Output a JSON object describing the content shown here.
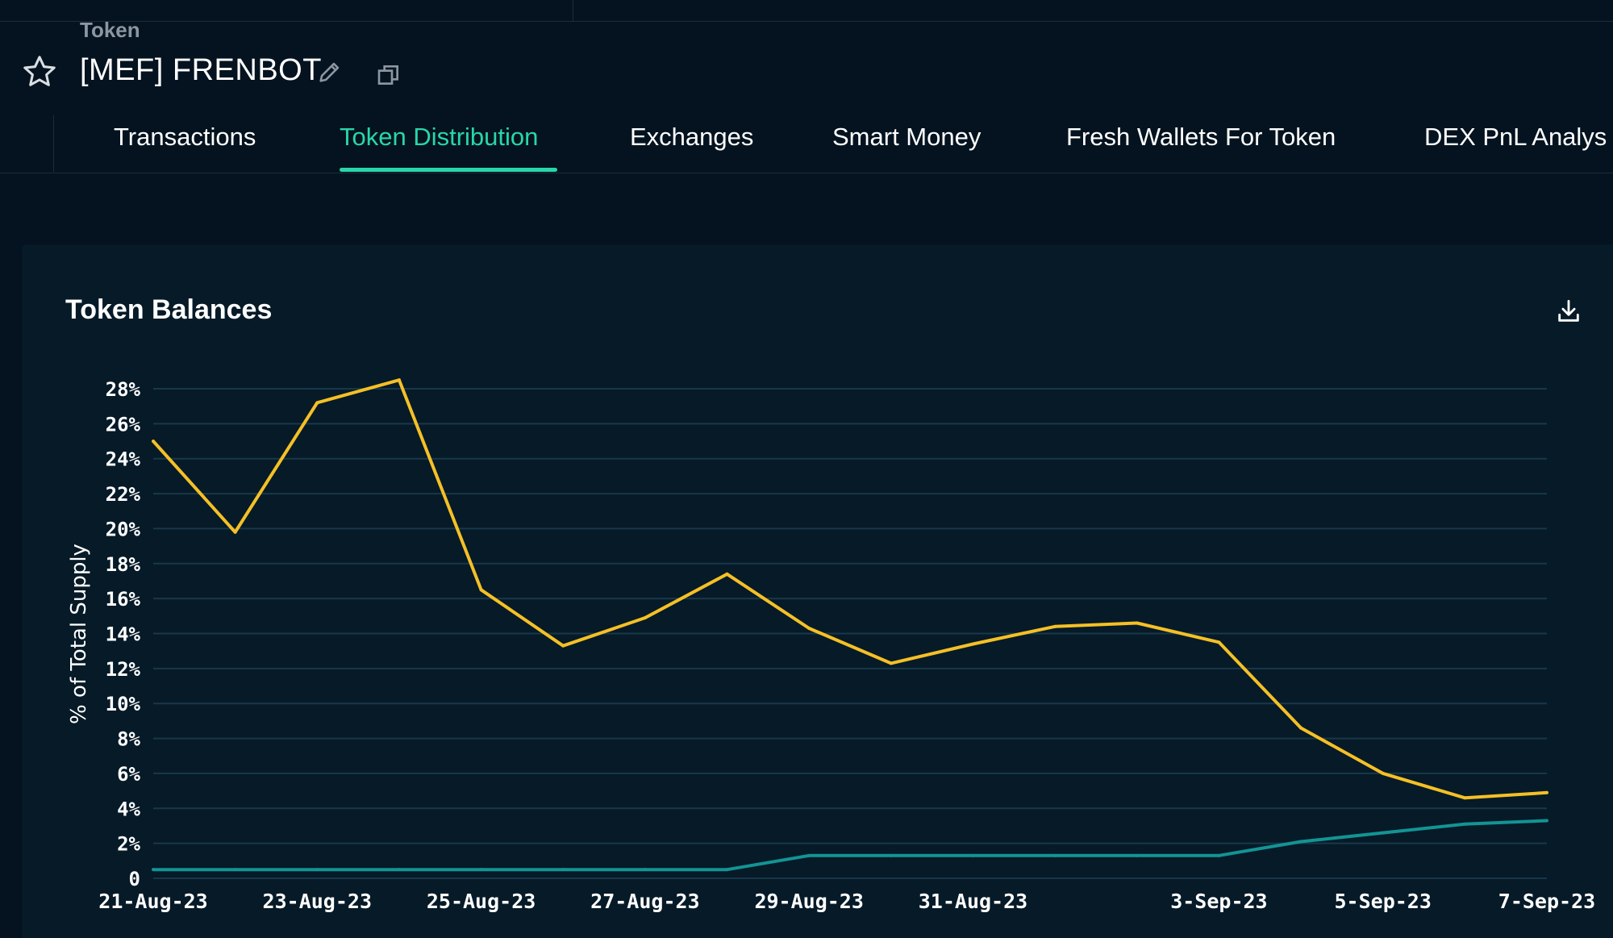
{
  "header": {
    "breadcrumb": "Token",
    "token_name": "[MEF] FRENBOT"
  },
  "tabs": [
    {
      "label": "Transactions",
      "active": false
    },
    {
      "label": "Token Distribution",
      "active": true
    },
    {
      "label": "Exchanges",
      "active": false
    },
    {
      "label": "Smart Money",
      "active": false
    },
    {
      "label": "Fresh Wallets For Token",
      "active": false
    },
    {
      "label": "DEX PnL Analys",
      "active": false
    }
  ],
  "colors": {
    "accent": "#29d6a9",
    "background": "#04131f",
    "card": "#061a28",
    "series_yellow": "#f5c026",
    "series_teal": "#139494",
    "grid": "#18384a"
  },
  "icons": [
    "star-icon",
    "edit-icon",
    "copy-icon",
    "download-icon"
  ],
  "chart_data": {
    "type": "line",
    "title": "Token Balances",
    "ylabel": "% of Total Supply",
    "xlabel": "",
    "ylim": [
      0,
      28
    ],
    "yticks": [
      0,
      2,
      4,
      6,
      8,
      10,
      12,
      14,
      16,
      18,
      20,
      22,
      24,
      26,
      28
    ],
    "ytick_labels": [
      "0",
      "2%",
      "4%",
      "6%",
      "8%",
      "10%",
      "12%",
      "14%",
      "16%",
      "18%",
      "20%",
      "22%",
      "24%",
      "26%",
      "28%"
    ],
    "x": [
      "21-Aug-23",
      "22-Aug-23",
      "23-Aug-23",
      "24-Aug-23",
      "25-Aug-23",
      "26-Aug-23",
      "27-Aug-23",
      "28-Aug-23",
      "29-Aug-23",
      "30-Aug-23",
      "31-Aug-23",
      "1-Sep-23",
      "2-Sep-23",
      "3-Sep-23",
      "4-Sep-23",
      "5-Sep-23",
      "6-Sep-23",
      "7-Sep-23"
    ],
    "xtick_labels": [
      "21-Aug-23",
      "23-Aug-23",
      "25-Aug-23",
      "27-Aug-23",
      "29-Aug-23",
      "31-Aug-23",
      "3-Sep-23",
      "5-Sep-23",
      "7-Sep-23"
    ],
    "grid": true,
    "legend": "none",
    "series": [
      {
        "color": "#f5c026",
        "values": [
          25.0,
          19.8,
          27.2,
          28.5,
          16.5,
          13.3,
          14.9,
          17.4,
          14.3,
          12.3,
          13.4,
          14.4,
          14.6,
          13.5,
          8.6,
          6.0,
          4.6,
          4.9
        ]
      },
      {
        "color": "#139494",
        "values": [
          0.5,
          0.5,
          0.5,
          0.5,
          0.5,
          0.5,
          0.5,
          0.5,
          1.3,
          1.3,
          1.3,
          1.3,
          1.3,
          1.3,
          2.1,
          2.6,
          3.1,
          3.3
        ]
      }
    ]
  }
}
